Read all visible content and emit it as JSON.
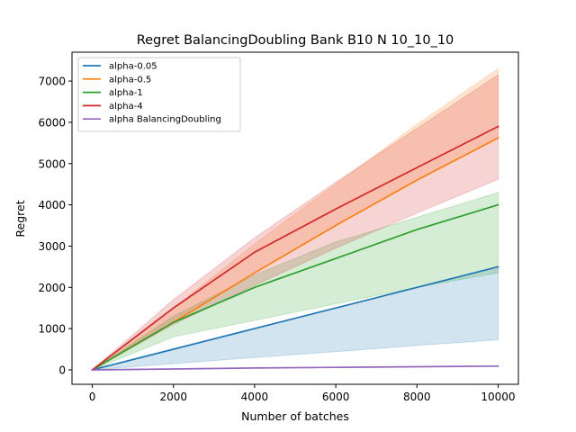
{
  "chart_data": {
    "type": "line",
    "title": "Regret BalancingDoubling Bank B10 N 10_10_10",
    "xlabel": "Number of batches",
    "ylabel": "Regret",
    "xlim": [
      -500,
      10500
    ],
    "ylim": [
      -350,
      7700
    ],
    "xticks": [
      0,
      2000,
      4000,
      6000,
      8000,
      10000
    ],
    "yticks": [
      0,
      1000,
      2000,
      3000,
      4000,
      5000,
      6000,
      7000
    ],
    "xtick_labels": [
      "0",
      "2000",
      "4000",
      "6000",
      "8000",
      "10000"
    ],
    "ytick_labels": [
      "0",
      "1000",
      "2000",
      "3000",
      "4000",
      "5000",
      "6000",
      "7000"
    ],
    "grid": false,
    "legend_position": "upper-left",
    "x": [
      0,
      2000,
      4000,
      6000,
      8000,
      10000
    ],
    "series": [
      {
        "name": "alpha-0.05",
        "color": "#1f77b4",
        "values": [
          0,
          500,
          1000,
          1500,
          2000,
          2500
        ],
        "lower": [
          0,
          150,
          300,
          440,
          590,
          730
        ],
        "upper": [
          0,
          500,
          1000,
          1500,
          2000,
          2500
        ]
      },
      {
        "name": "alpha-0.5",
        "color": "#ff7f0e",
        "values": [
          0,
          1150,
          2350,
          3500,
          4600,
          5620
        ],
        "lower": [
          0,
          1150,
          2350,
          3500,
          4600,
          5620
        ],
        "upper": [
          0,
          1500,
          3050,
          4500,
          5950,
          7300
        ]
      },
      {
        "name": "alpha-1",
        "color": "#2ca02c",
        "values": [
          0,
          1150,
          2000,
          2700,
          3400,
          4000
        ],
        "lower": [
          0,
          800,
          1200,
          1600,
          2000,
          2350
        ],
        "upper": [
          0,
          1300,
          2300,
          3100,
          3700,
          4300
        ]
      },
      {
        "name": "alpha-4",
        "color": "#d62728",
        "values": [
          0,
          1500,
          2850,
          3900,
          4900,
          5900
        ],
        "lower": [
          0,
          1100,
          2050,
          2950,
          3800,
          4620
        ],
        "upper": [
          0,
          1700,
          3200,
          4550,
          5850,
          7150
        ]
      },
      {
        "name": "alpha BalancingDoubling",
        "color": "#9467bd",
        "values": [
          0,
          20,
          45,
          60,
          75,
          90
        ],
        "lower": [
          0,
          20,
          45,
          60,
          75,
          90
        ],
        "upper": [
          0,
          20,
          45,
          60,
          75,
          90
        ]
      }
    ]
  }
}
